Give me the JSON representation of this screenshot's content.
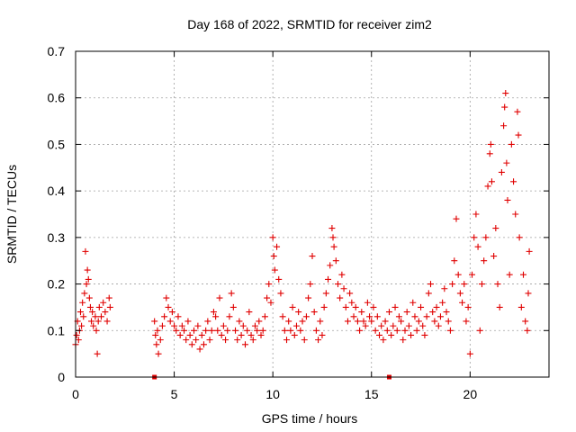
{
  "chart_data": {
    "type": "scatter",
    "title": "Day 168 of 2022, SRMTID for receiver zim2",
    "xlabel": "GPS time / hours",
    "ylabel": "SRMTID / TECUs",
    "xlim": [
      0,
      24
    ],
    "ylim": [
      0,
      0.7
    ],
    "x_ticks": [
      0,
      5,
      10,
      15,
      20
    ],
    "x_tick_labels": [
      "0",
      "5",
      "10",
      "15",
      "20"
    ],
    "y_ticks": [
      0,
      0.1,
      0.2,
      0.3,
      0.4,
      0.5,
      0.6,
      0.7
    ],
    "y_tick_labels": [
      "0",
      "0.1",
      "0.2",
      "0.3",
      "0.4",
      "0.5",
      "0.6",
      "0.7"
    ],
    "grid": true,
    "marker": "+",
    "series": [
      {
        "name": "SRMTID",
        "color": "#e00000",
        "points": [
          [
            0.0,
            0.07
          ],
          [
            0.05,
            0.09
          ],
          [
            0.1,
            0.12
          ],
          [
            0.15,
            0.08
          ],
          [
            0.2,
            0.1
          ],
          [
            0.25,
            0.14
          ],
          [
            0.3,
            0.11
          ],
          [
            0.35,
            0.16
          ],
          [
            0.4,
            0.13
          ],
          [
            0.45,
            0.18
          ],
          [
            0.5,
            0.27
          ],
          [
            0.55,
            0.2
          ],
          [
            0.6,
            0.23
          ],
          [
            0.65,
            0.21
          ],
          [
            0.7,
            0.17
          ],
          [
            0.75,
            0.15
          ],
          [
            0.8,
            0.12
          ],
          [
            0.85,
            0.14
          ],
          [
            0.9,
            0.11
          ],
          [
            1.0,
            0.13
          ],
          [
            1.05,
            0.1
          ],
          [
            1.1,
            0.05
          ],
          [
            1.15,
            0.12
          ],
          [
            1.2,
            0.15
          ],
          [
            1.3,
            0.13
          ],
          [
            1.4,
            0.16
          ],
          [
            1.5,
            0.14
          ],
          [
            1.6,
            0.12
          ],
          [
            1.7,
            0.17
          ],
          [
            1.75,
            0.15
          ],
          [
            4.0,
            0.12
          ],
          [
            4.05,
            0.09
          ],
          [
            4.1,
            0.07
          ],
          [
            4.15,
            0.1
          ],
          [
            4.2,
            0.05
          ],
          [
            4.3,
            0.08
          ],
          [
            4.4,
            0.11
          ],
          [
            4.5,
            0.13
          ],
          [
            4.6,
            0.17
          ],
          [
            4.7,
            0.15
          ],
          [
            4.8,
            0.12
          ],
          [
            4.9,
            0.14
          ],
          [
            5.0,
            0.11
          ],
          [
            5.1,
            0.1
          ],
          [
            5.2,
            0.13
          ],
          [
            5.3,
            0.09
          ],
          [
            5.4,
            0.11
          ],
          [
            5.5,
            0.1
          ],
          [
            5.6,
            0.08
          ],
          [
            5.7,
            0.12
          ],
          [
            5.8,
            0.09
          ],
          [
            5.9,
            0.07
          ],
          [
            6.0,
            0.1
          ],
          [
            6.1,
            0.08
          ],
          [
            6.2,
            0.11
          ],
          [
            6.3,
            0.06
          ],
          [
            6.4,
            0.09
          ],
          [
            6.5,
            0.07
          ],
          [
            6.6,
            0.1
          ],
          [
            6.7,
            0.12
          ],
          [
            6.8,
            0.08
          ],
          [
            6.9,
            0.1
          ],
          [
            7.0,
            0.14
          ],
          [
            7.1,
            0.13
          ],
          [
            7.2,
            0.1
          ],
          [
            7.3,
            0.17
          ],
          [
            7.4,
            0.09
          ],
          [
            7.5,
            0.11
          ],
          [
            7.6,
            0.08
          ],
          [
            7.7,
            0.1
          ],
          [
            7.8,
            0.13
          ],
          [
            7.9,
            0.18
          ],
          [
            8.0,
            0.15
          ],
          [
            8.1,
            0.1
          ],
          [
            8.2,
            0.08
          ],
          [
            8.3,
            0.12
          ],
          [
            8.4,
            0.09
          ],
          [
            8.5,
            0.11
          ],
          [
            8.6,
            0.07
          ],
          [
            8.7,
            0.1
          ],
          [
            8.8,
            0.14
          ],
          [
            8.9,
            0.09
          ],
          [
            9.0,
            0.08
          ],
          [
            9.1,
            0.11
          ],
          [
            9.2,
            0.1
          ],
          [
            9.3,
            0.12
          ],
          [
            9.4,
            0.09
          ],
          [
            9.5,
            0.1
          ],
          [
            9.6,
            0.13
          ],
          [
            9.7,
            0.17
          ],
          [
            9.8,
            0.2
          ],
          [
            9.9,
            0.16
          ],
          [
            10.0,
            0.3
          ],
          [
            10.05,
            0.26
          ],
          [
            10.1,
            0.23
          ],
          [
            10.2,
            0.28
          ],
          [
            10.3,
            0.21
          ],
          [
            10.4,
            0.18
          ],
          [
            10.5,
            0.13
          ],
          [
            10.6,
            0.1
          ],
          [
            10.7,
            0.08
          ],
          [
            10.8,
            0.12
          ],
          [
            10.9,
            0.1
          ],
          [
            11.0,
            0.15
          ],
          [
            11.1,
            0.09
          ],
          [
            11.2,
            0.11
          ],
          [
            11.3,
            0.14
          ],
          [
            11.4,
            0.1
          ],
          [
            11.5,
            0.12
          ],
          [
            11.6,
            0.08
          ],
          [
            11.7,
            0.13
          ],
          [
            11.8,
            0.17
          ],
          [
            11.9,
            0.2
          ],
          [
            12.0,
            0.26
          ],
          [
            12.1,
            0.14
          ],
          [
            12.2,
            0.1
          ],
          [
            12.3,
            0.08
          ],
          [
            12.4,
            0.12
          ],
          [
            12.5,
            0.09
          ],
          [
            12.6,
            0.15
          ],
          [
            12.7,
            0.18
          ],
          [
            12.8,
            0.21
          ],
          [
            12.9,
            0.24
          ],
          [
            13.0,
            0.32
          ],
          [
            13.05,
            0.3
          ],
          [
            13.1,
            0.28
          ],
          [
            13.2,
            0.25
          ],
          [
            13.3,
            0.2
          ],
          [
            13.4,
            0.17
          ],
          [
            13.5,
            0.22
          ],
          [
            13.6,
            0.19
          ],
          [
            13.7,
            0.15
          ],
          [
            13.8,
            0.12
          ],
          [
            13.9,
            0.18
          ],
          [
            14.0,
            0.16
          ],
          [
            14.1,
            0.13
          ],
          [
            14.2,
            0.15
          ],
          [
            14.3,
            0.12
          ],
          [
            14.4,
            0.1
          ],
          [
            14.5,
            0.14
          ],
          [
            14.6,
            0.12
          ],
          [
            14.7,
            0.11
          ],
          [
            14.8,
            0.16
          ],
          [
            14.9,
            0.13
          ],
          [
            15.0,
            0.12
          ],
          [
            15.1,
            0.15
          ],
          [
            15.2,
            0.1
          ],
          [
            15.3,
            0.13
          ],
          [
            15.4,
            0.09
          ],
          [
            15.5,
            0.11
          ],
          [
            15.6,
            0.08
          ],
          [
            15.7,
            0.12
          ],
          [
            15.8,
            0.1
          ],
          [
            15.9,
            0.14
          ],
          [
            16.0,
            0.09
          ],
          [
            16.1,
            0.11
          ],
          [
            16.2,
            0.15
          ],
          [
            16.3,
            0.1
          ],
          [
            16.4,
            0.13
          ],
          [
            16.5,
            0.12
          ],
          [
            16.6,
            0.08
          ],
          [
            16.7,
            0.1
          ],
          [
            16.8,
            0.14
          ],
          [
            16.9,
            0.11
          ],
          [
            17.0,
            0.09
          ],
          [
            17.1,
            0.16
          ],
          [
            17.2,
            0.13
          ],
          [
            17.3,
            0.1
          ],
          [
            17.4,
            0.12
          ],
          [
            17.5,
            0.15
          ],
          [
            17.6,
            0.11
          ],
          [
            17.7,
            0.09
          ],
          [
            17.8,
            0.13
          ],
          [
            17.9,
            0.18
          ],
          [
            18.0,
            0.2
          ],
          [
            18.1,
            0.14
          ],
          [
            18.2,
            0.12
          ],
          [
            18.3,
            0.15
          ],
          [
            18.4,
            0.11
          ],
          [
            18.5,
            0.13
          ],
          [
            18.6,
            0.16
          ],
          [
            18.7,
            0.19
          ],
          [
            18.8,
            0.14
          ],
          [
            18.9,
            0.12
          ],
          [
            19.0,
            0.1
          ],
          [
            19.1,
            0.2
          ],
          [
            19.2,
            0.25
          ],
          [
            19.3,
            0.34
          ],
          [
            19.4,
            0.22
          ],
          [
            19.5,
            0.18
          ],
          [
            19.6,
            0.16
          ],
          [
            19.7,
            0.2
          ],
          [
            19.8,
            0.12
          ],
          [
            19.9,
            0.15
          ],
          [
            20.0,
            0.05
          ],
          [
            20.1,
            0.22
          ],
          [
            20.2,
            0.3
          ],
          [
            20.3,
            0.35
          ],
          [
            20.4,
            0.28
          ],
          [
            20.5,
            0.1
          ],
          [
            20.6,
            0.2
          ],
          [
            20.7,
            0.25
          ],
          [
            20.8,
            0.3
          ],
          [
            20.9,
            0.41
          ],
          [
            21.0,
            0.48
          ],
          [
            21.05,
            0.5
          ],
          [
            21.1,
            0.42
          ],
          [
            21.2,
            0.26
          ],
          [
            21.3,
            0.32
          ],
          [
            21.4,
            0.2
          ],
          [
            21.5,
            0.15
          ],
          [
            21.6,
            0.44
          ],
          [
            21.7,
            0.54
          ],
          [
            21.75,
            0.58
          ],
          [
            21.8,
            0.61
          ],
          [
            21.85,
            0.46
          ],
          [
            21.9,
            0.38
          ],
          [
            22.0,
            0.22
          ],
          [
            22.1,
            0.5
          ],
          [
            22.2,
            0.42
          ],
          [
            22.3,
            0.35
          ],
          [
            22.4,
            0.57
          ],
          [
            22.45,
            0.52
          ],
          [
            22.5,
            0.3
          ],
          [
            22.6,
            0.15
          ],
          [
            22.7,
            0.22
          ],
          [
            22.8,
            0.12
          ],
          [
            22.9,
            0.1
          ],
          [
            22.95,
            0.18
          ],
          [
            23.0,
            0.27
          ]
        ]
      }
    ],
    "zero_markers": [
      4.0,
      15.9
    ]
  }
}
